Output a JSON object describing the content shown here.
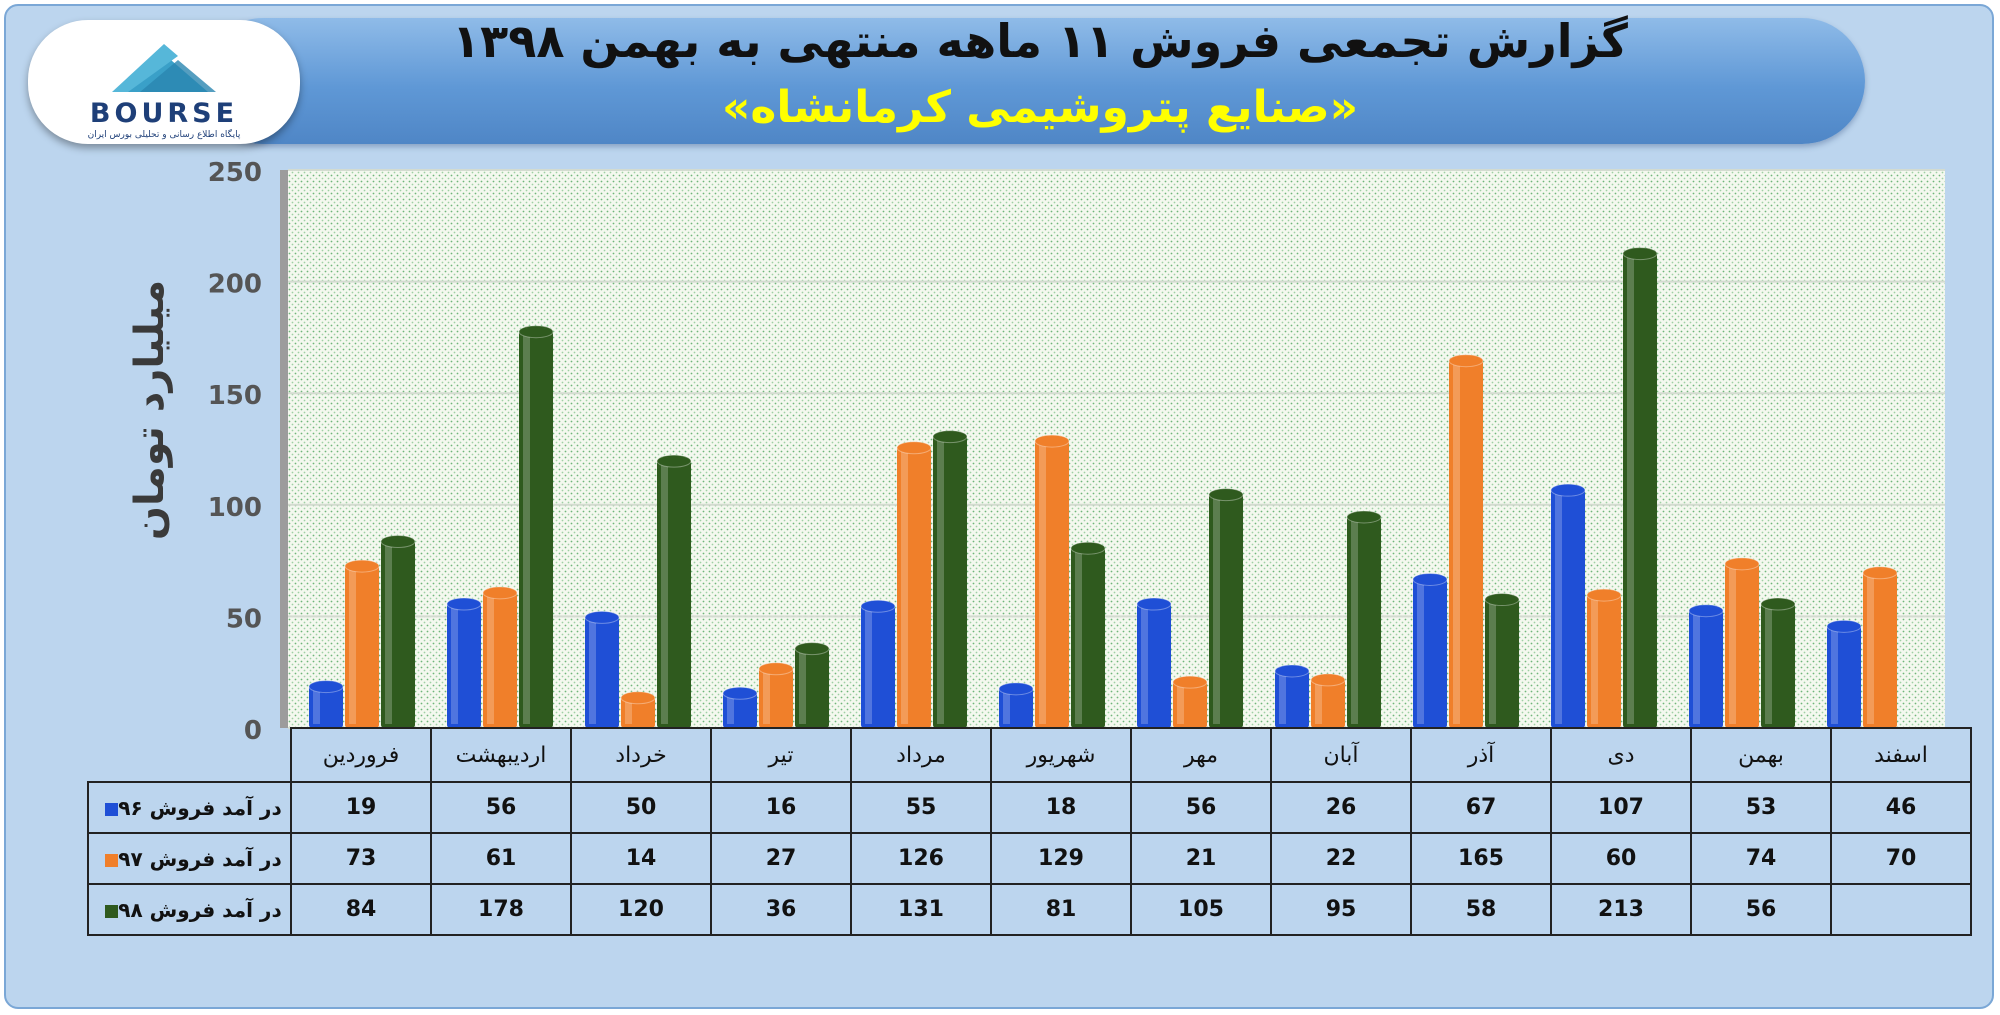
{
  "header": {
    "title": "گزارش تجمعی فروش ۱۱ ماهه منتهی به بهمن ۱۳۹۸",
    "subtitle": "«صنایع پتروشیمی کرمانشاه»"
  },
  "logo": {
    "text": "BOURSE",
    "tagline": "پایگاه اطلاع رسانی و تحلیلی بورس ایران"
  },
  "colors": {
    "series96": "#1f4fd6",
    "series97": "#f07f2a",
    "series98": "#2f5a1e",
    "background": "#bcd5ee",
    "banner": "#5f98d6",
    "subtitle": "#ffff00"
  },
  "chart_data": {
    "type": "bar",
    "ylabel": "میلیارد تومان",
    "ylim": [
      0,
      250
    ],
    "yticks": [
      0,
      50,
      100,
      150,
      200,
      250
    ],
    "grid": true,
    "categories": [
      "فروردین",
      "اردیبهشت",
      "خرداد",
      "تیر",
      "مرداد",
      "شهریور",
      "مهر",
      "آبان",
      "آذر",
      "دی",
      "بهمن",
      "اسفند"
    ],
    "series": [
      {
        "name": "در آمد فروش ۹۶",
        "values": [
          19,
          56,
          50,
          16,
          55,
          18,
          56,
          26,
          67,
          107,
          53,
          46
        ]
      },
      {
        "name": "در آمد فروش ۹۷",
        "values": [
          73,
          61,
          14,
          27,
          126,
          129,
          21,
          22,
          165,
          60,
          74,
          70
        ]
      },
      {
        "name": "در آمد فروش ۹۸",
        "values": [
          84,
          178,
          120,
          36,
          131,
          81,
          105,
          95,
          58,
          213,
          56,
          null
        ]
      }
    ]
  }
}
